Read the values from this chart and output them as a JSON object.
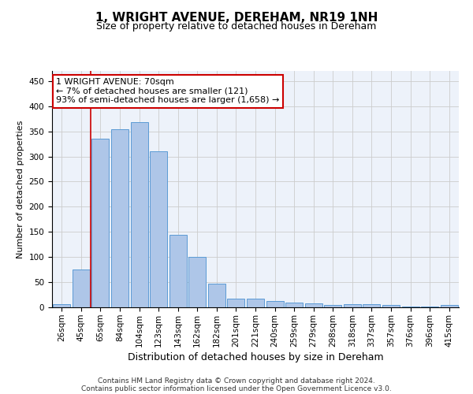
{
  "title": "1, WRIGHT AVENUE, DEREHAM, NR19 1NH",
  "subtitle": "Size of property relative to detached houses in Dereham",
  "xlabel": "Distribution of detached houses by size in Dereham",
  "ylabel": "Number of detached properties",
  "categories": [
    "26sqm",
    "45sqm",
    "65sqm",
    "84sqm",
    "104sqm",
    "123sqm",
    "143sqm",
    "162sqm",
    "182sqm",
    "201sqm",
    "221sqm",
    "240sqm",
    "259sqm",
    "279sqm",
    "298sqm",
    "318sqm",
    "337sqm",
    "357sqm",
    "376sqm",
    "396sqm",
    "415sqm"
  ],
  "values": [
    7,
    75,
    335,
    354,
    368,
    310,
    144,
    100,
    47,
    18,
    18,
    13,
    10,
    8,
    4,
    7,
    6,
    4,
    2,
    1,
    4
  ],
  "bar_color": "#aec6e8",
  "bar_edge_color": "#5b9bd5",
  "vline_x_index": 2,
  "vline_color": "#cc0000",
  "annotation_line1": "1 WRIGHT AVENUE: 70sqm",
  "annotation_line2": "← 7% of detached houses are smaller (121)",
  "annotation_line3": "93% of semi-detached houses are larger (1,658) →",
  "annotation_box_color": "#ffffff",
  "annotation_box_edge_color": "#cc0000",
  "ylim": [
    0,
    470
  ],
  "yticks": [
    0,
    50,
    100,
    150,
    200,
    250,
    300,
    350,
    400,
    450
  ],
  "grid_color": "#cccccc",
  "footer_line1": "Contains HM Land Registry data © Crown copyright and database right 2024.",
  "footer_line2": "Contains public sector information licensed under the Open Government Licence v3.0.",
  "title_fontsize": 11,
  "subtitle_fontsize": 9,
  "xlabel_fontsize": 9,
  "ylabel_fontsize": 8,
  "tick_fontsize": 7.5,
  "annotation_fontsize": 8,
  "footer_fontsize": 6.5
}
